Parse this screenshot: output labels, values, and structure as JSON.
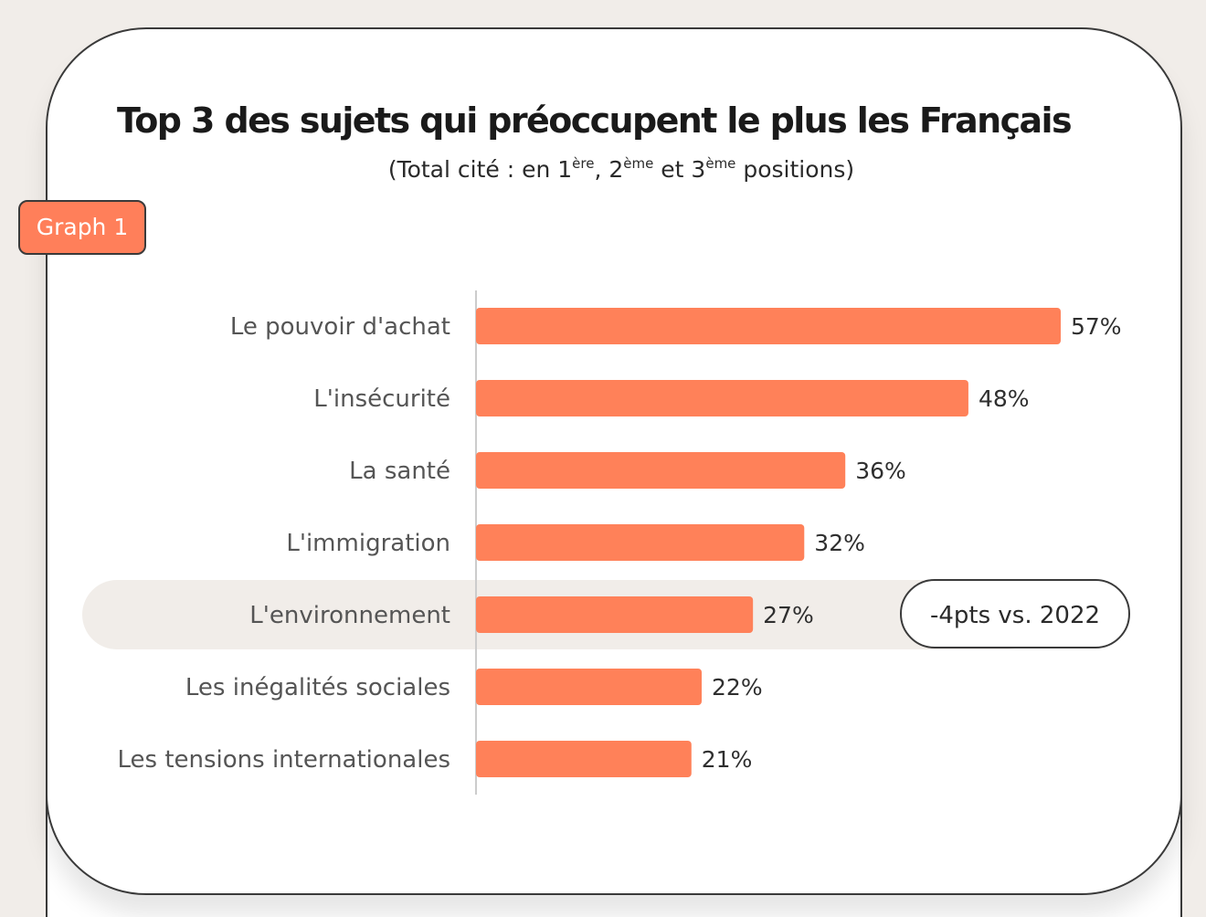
{
  "badge": {
    "label": "Graph 1"
  },
  "title": "Top 3 des sujets qui préoccupent le plus les Français",
  "subtitle": {
    "part1": "(Total cité : en 1",
    "sup1": "ère",
    "part2": ", 2",
    "sup2": "ème",
    "part3": " et 3",
    "sup3": "ème",
    "part4": " positions)"
  },
  "colors": {
    "bar": "#ff8159",
    "highlight_band": "#f1ede9",
    "axis": "#cccccc",
    "badge_bg": "#ff7f5a"
  },
  "chart_data": {
    "type": "bar",
    "orientation": "horizontal",
    "categories": [
      "Le pouvoir d'achat",
      "L'insécurité",
      "La santé",
      "L'immigration",
      "L'environnement",
      "Les inégalités sociales",
      "Les tensions internationales"
    ],
    "values": [
      57,
      48,
      36,
      32,
      27,
      22,
      21
    ],
    "value_labels": [
      "57%",
      "48%",
      "36%",
      "32%",
      "27%",
      "22%",
      "21%"
    ],
    "unit": "%",
    "xlim": [
      0,
      60
    ],
    "grid": false,
    "highlight": {
      "category": "L'environnement",
      "annotation": "-4pts vs. 2022"
    }
  }
}
